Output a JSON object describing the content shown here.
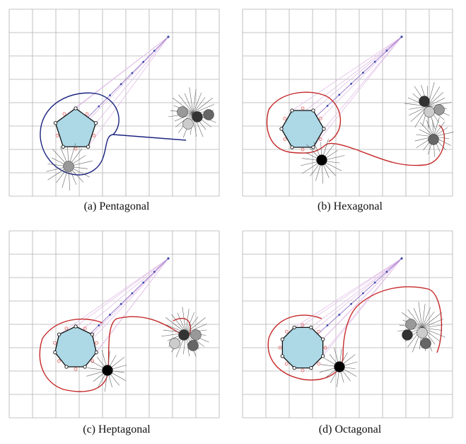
{
  "figure": {
    "panels": [
      {
        "id": "a",
        "caption": "(a) Pentagonal",
        "sides": 5,
        "trajectory_color": "#1a237e"
      },
      {
        "id": "b",
        "caption": "(b) Hexagonal",
        "sides": 6,
        "trajectory_color": "#c62828"
      },
      {
        "id": "c",
        "caption": "(c) Heptagonal",
        "sides": 7,
        "trajectory_color": "#c62828"
      },
      {
        "id": "d",
        "caption": "(d) Octagonal",
        "sides": 8,
        "trajectory_color": "#c62828"
      }
    ],
    "colors": {
      "grid": "#b0b0b0",
      "polygon_fill": "#add8e6",
      "beam": "#e1bee7",
      "beam_points": "#3949ab",
      "vertex_marker": "#e57373",
      "agents": [
        "#000000",
        "#333333",
        "#666666",
        "#999999",
        "#cccccc"
      ]
    }
  }
}
